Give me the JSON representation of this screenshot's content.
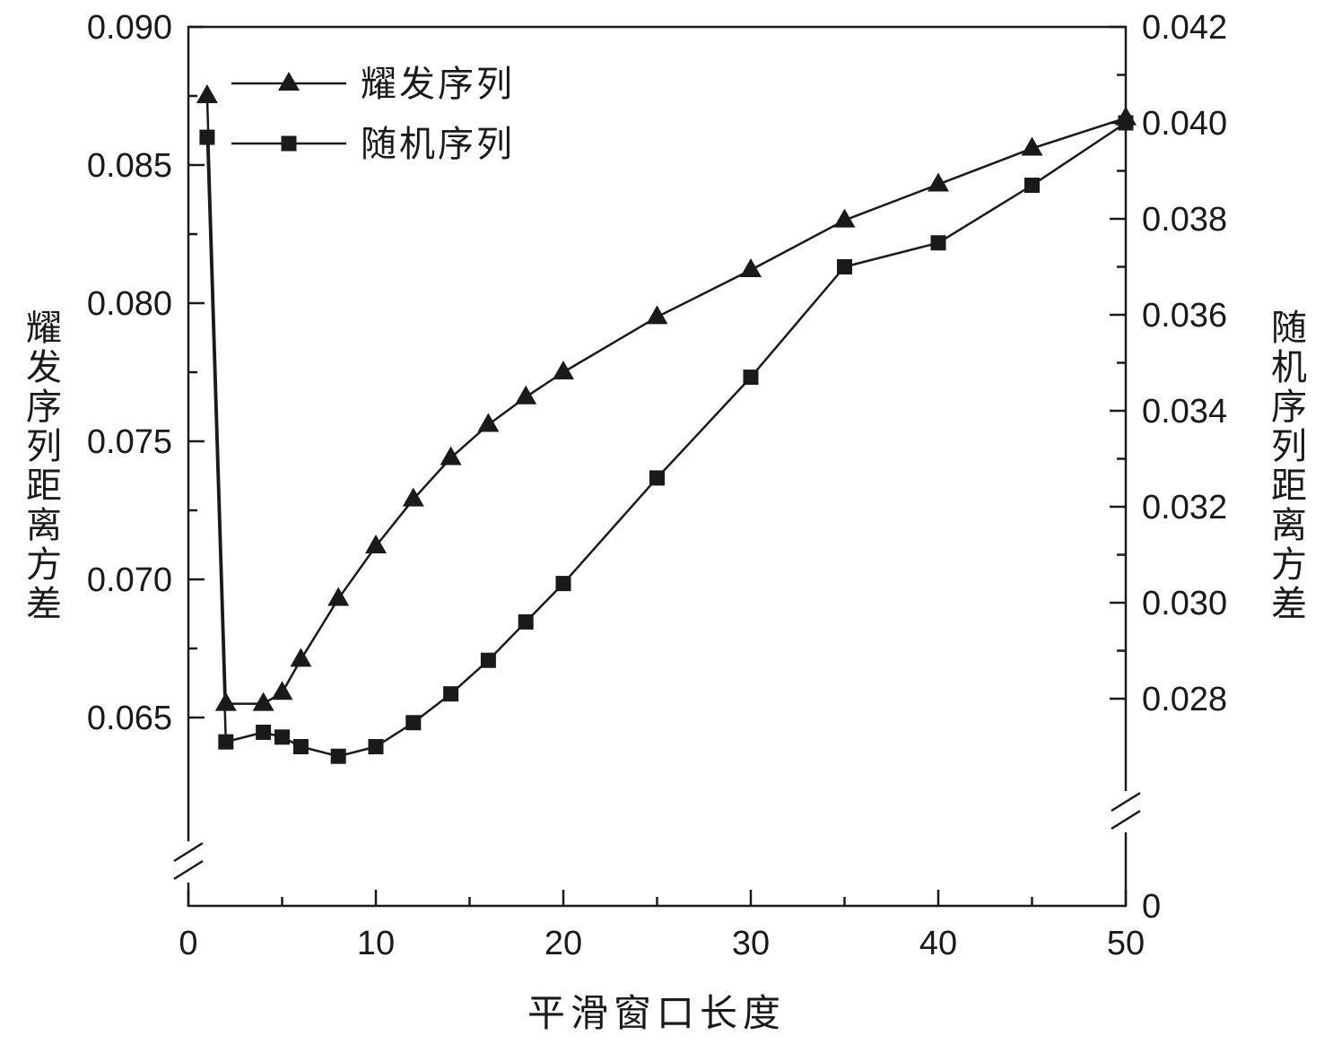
{
  "figure": {
    "xlabel": "平滑窗口长度",
    "left_axis_label": "耀发序列距离方差",
    "right_axis_label": "随机序列距离方差"
  },
  "chart_data": {
    "type": "line",
    "title": "",
    "xlabel": "平滑窗口长度",
    "left_ylabel": "耀发序列距离方差",
    "right_ylabel": "随机序列距离方差",
    "xlim": [
      0,
      50
    ],
    "x_tick_labels": [
      "0",
      "10",
      "20",
      "30",
      "40",
      "50"
    ],
    "x_minor_ticks": [
      5,
      15,
      25,
      35,
      45
    ],
    "grid": false,
    "legend_position": "top-left",
    "line_color": "#1a1a1a",
    "left_axis": {
      "range": [
        0.065,
        0.09
      ],
      "tick_labels": [
        "0.090",
        "0.085",
        "0.080",
        "0.075",
        "0.070",
        "0.065"
      ],
      "axis_break": true
    },
    "right_axis": {
      "range": [
        0.028,
        0.042
      ],
      "tick_labels": [
        "0.042",
        "0.040",
        "0.038",
        "0.036",
        "0.034",
        "0.032",
        "0.030",
        "0.028"
      ],
      "bottom_label": "0",
      "axis_break": true
    },
    "series": [
      {
        "name": "耀发序列",
        "axis": "left",
        "marker": "triangle",
        "color": "#1a1a1a",
        "x": [
          1,
          2,
          4,
          5,
          6,
          8,
          10,
          12,
          14,
          16,
          18,
          20,
          25,
          30,
          35,
          40,
          45,
          50
        ],
        "y": [
          0.0875,
          0.0655,
          0.0655,
          0.0659,
          0.0671,
          0.0693,
          0.0712,
          0.0729,
          0.0744,
          0.0756,
          0.0766,
          0.0775,
          0.0795,
          0.0812,
          0.083,
          0.0843,
          0.0856,
          0.0867
        ]
      },
      {
        "name": "随机序列",
        "axis": "right",
        "marker": "square",
        "color": "#1a1a1a",
        "x": [
          1,
          2,
          4,
          5,
          6,
          8,
          10,
          12,
          14,
          16,
          18,
          20,
          25,
          30,
          35,
          40,
          45,
          50
        ],
        "y": [
          0.0397,
          0.0271,
          0.0273,
          0.0272,
          0.027,
          0.0268,
          0.027,
          0.0275,
          0.0281,
          0.0288,
          0.0296,
          0.0304,
          0.0326,
          0.0347,
          0.037,
          0.0375,
          0.0387,
          0.04
        ]
      }
    ]
  }
}
